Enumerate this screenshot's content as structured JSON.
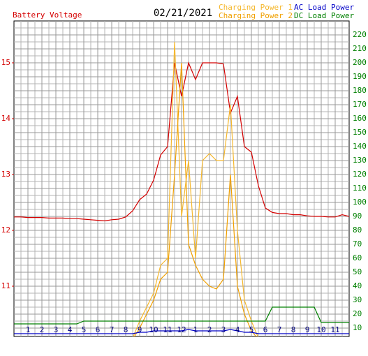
{
  "chart_data": {
    "type": "line",
    "title": "Battery Voltage",
    "date": "02/21/2021",
    "x": [
      0,
      0.5,
      1,
      1.5,
      2,
      2.5,
      3,
      3.5,
      4,
      4.5,
      5,
      5.5,
      6,
      6.5,
      7,
      7.5,
      8,
      8.5,
      9,
      9.5,
      10,
      10.5,
      11,
      11.5,
      12,
      12.5,
      13,
      13.5,
      14,
      14.5,
      15,
      15.5,
      16,
      16.5,
      17,
      17.5,
      18,
      18.5,
      19,
      19.5,
      20,
      20.5,
      21,
      21.5,
      22,
      22.5,
      23,
      23.5,
      24
    ],
    "xlim": [
      0,
      24
    ],
    "xticks": [
      1,
      2,
      3,
      4,
      5,
      6,
      7,
      8,
      9,
      10,
      11,
      12,
      {
        "value": 13,
        "label": "1"
      },
      {
        "value": 14,
        "label": "2"
      },
      {
        "value": 15,
        "label": "3"
      },
      {
        "value": 16,
        "label": "4"
      },
      {
        "value": 17,
        "label": "5"
      },
      {
        "value": 18,
        "label": "6"
      },
      {
        "value": 19,
        "label": "7"
      },
      {
        "value": 20,
        "label": "8"
      },
      {
        "value": 21,
        "label": "9"
      },
      {
        "value": 22,
        "label": "10"
      },
      {
        "value": 23,
        "label": "11"
      }
    ],
    "ylim": [
      10.1,
      15.75
    ],
    "yticks": [
      11,
      12,
      13,
      14,
      15
    ],
    "y2lim": [
      4,
      230
    ],
    "y2ticks": [
      10,
      20,
      30,
      40,
      50,
      60,
      70,
      80,
      90,
      100,
      110,
      120,
      130,
      140,
      150,
      160,
      170,
      180,
      190,
      200,
      210,
      220
    ],
    "grid": true,
    "series": [
      {
        "name": "Battery Voltage",
        "color": "#d40000",
        "values": [
          12.24,
          12.24,
          12.23,
          12.23,
          12.23,
          12.22,
          12.22,
          12.22,
          12.21,
          12.21,
          12.2,
          12.19,
          12.18,
          12.17,
          12.19,
          12.2,
          12.24,
          12.35,
          12.55,
          12.65,
          12.9,
          13.35,
          13.5,
          15.0,
          14.4,
          15.0,
          14.7,
          15.0,
          15.0,
          15.0,
          14.98,
          14.1,
          14.4,
          13.5,
          13.4,
          12.8,
          12.4,
          12.32,
          12.3,
          12.3,
          12.28,
          12.28,
          12.26,
          12.25,
          12.25,
          12.24,
          12.24,
          12.28,
          12.25
        ]
      },
      {
        "name": "Charging Power 1",
        "color": "#f5b82e",
        "axis": "y2",
        "values": [
          0,
          0,
          0,
          0,
          0,
          0,
          0,
          0,
          0,
          0,
          0,
          0,
          0,
          0,
          0,
          0,
          0,
          3,
          15,
          25,
          35,
          55,
          60,
          215,
          90,
          130,
          60,
          130,
          135,
          130,
          130,
          170,
          80,
          30,
          15,
          3,
          0,
          0,
          0,
          0,
          0,
          0,
          0,
          0,
          0,
          0,
          0,
          0,
          0
        ]
      },
      {
        "name": "Charging Power 2",
        "color": "#f0a000",
        "axis": "y2",
        "values": [
          0,
          0,
          0,
          0,
          0,
          0,
          0,
          0,
          0,
          0,
          0,
          0,
          0,
          0,
          0,
          0,
          0,
          2,
          10,
          20,
          30,
          45,
          50,
          120,
          200,
          70,
          55,
          45,
          40,
          38,
          45,
          120,
          40,
          20,
          8,
          2,
          0,
          0,
          0,
          0,
          0,
          0,
          0,
          0,
          0,
          0,
          0,
          0,
          0
        ]
      },
      {
        "name": "AC Load Power",
        "color": "#0000c8",
        "axis": "y2",
        "values": [
          6,
          6,
          6,
          6,
          6,
          6,
          6,
          6,
          6,
          6,
          6,
          6,
          6,
          6,
          6,
          6,
          6,
          6,
          7,
          7,
          8,
          8,
          8,
          8,
          8,
          9,
          8,
          8,
          8,
          8,
          8,
          9,
          8,
          7,
          7,
          6,
          6,
          6,
          6,
          6,
          6,
          6,
          6,
          6,
          6,
          6,
          6,
          6,
          6
        ]
      },
      {
        "name": "DC Load Power",
        "color": "#008000",
        "axis": "y2",
        "values": [
          13,
          13,
          13,
          13,
          13,
          13,
          13,
          13,
          13,
          13,
          15,
          15,
          15,
          15,
          15,
          15,
          15,
          15,
          15,
          15,
          15,
          15,
          15,
          15,
          15,
          15,
          15,
          15,
          15,
          15,
          15,
          15,
          15,
          15,
          15,
          15,
          15,
          25,
          25,
          25,
          25,
          25,
          25,
          25,
          14,
          14,
          14,
          14,
          14
        ]
      }
    ]
  }
}
